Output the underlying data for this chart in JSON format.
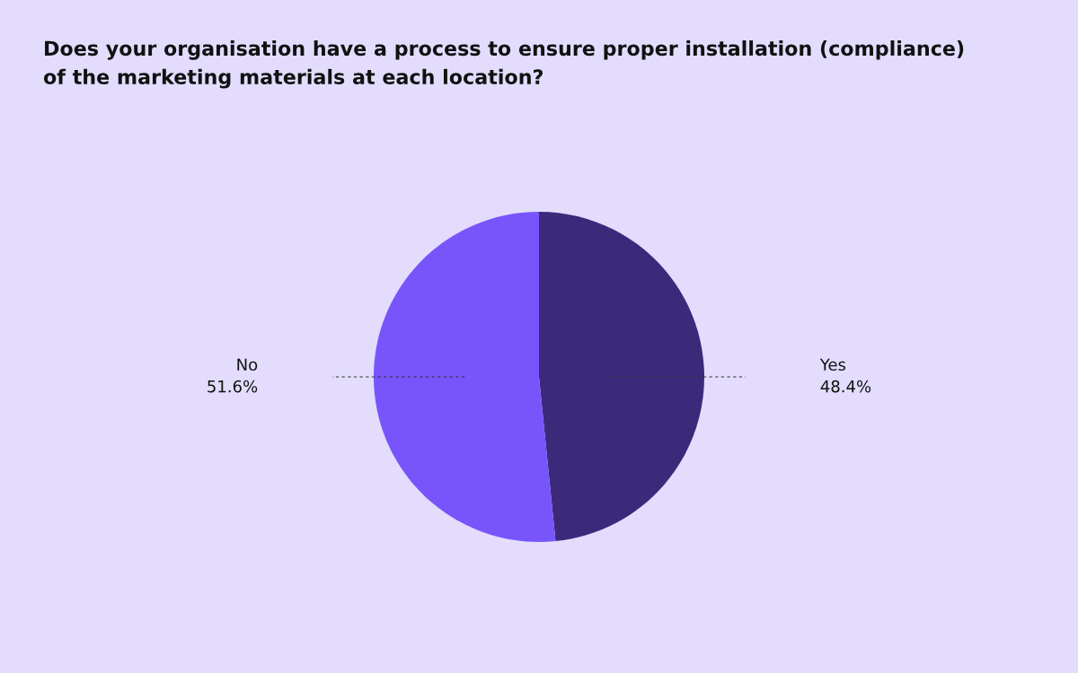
{
  "chart_data": {
    "type": "pie",
    "title": "Does your organisation have a process to ensure proper installation (compliance)\nof the marketing materials at each location?",
    "categories": [
      "Yes",
      "No"
    ],
    "values": [
      48.4,
      51.6
    ],
    "value_labels": [
      "48.4%",
      "51.6%"
    ],
    "colors": [
      "#3b2a7a",
      "#7755fb"
    ],
    "legend": false
  }
}
